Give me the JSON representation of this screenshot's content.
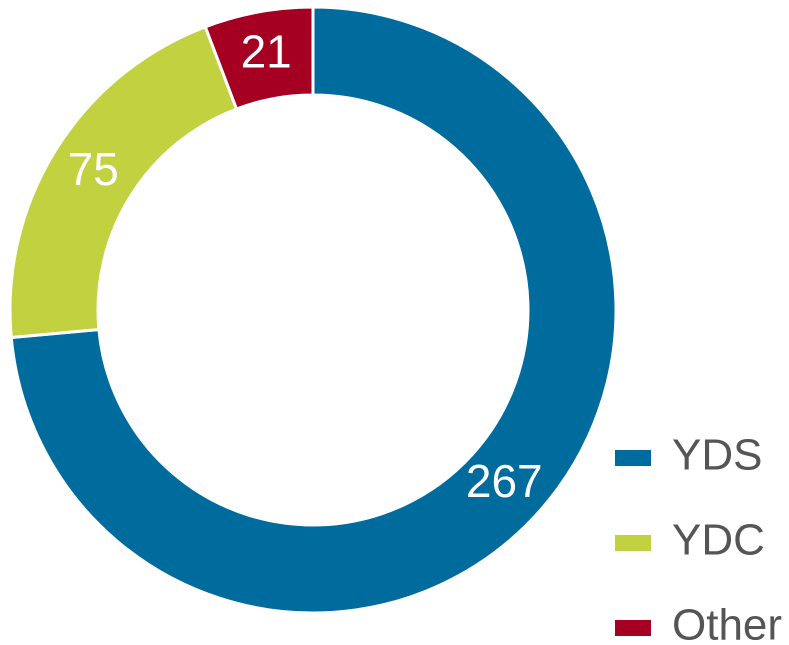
{
  "chart_data": {
    "type": "donut",
    "categories": [
      "YDS",
      "YDC",
      "Other"
    ],
    "values": [
      267,
      75,
      21
    ],
    "colors": [
      "#006c9e",
      "#c2d140",
      "#a50021"
    ]
  }
}
